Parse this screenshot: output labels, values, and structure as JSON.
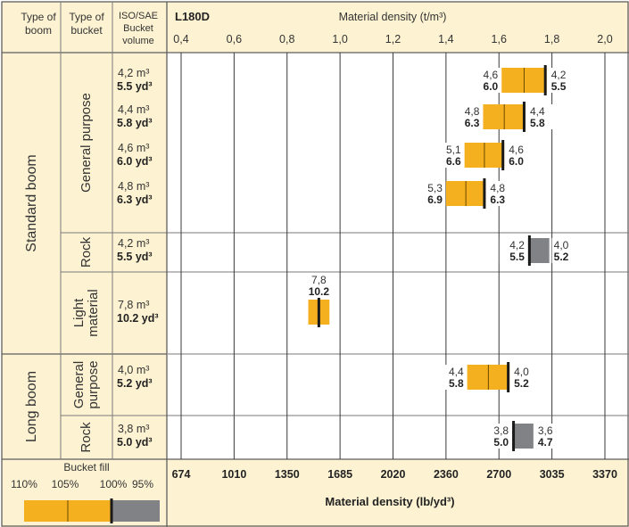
{
  "header": {
    "col_type_of_boom": [
      "Type of",
      "boom"
    ],
    "col_type_of_bucket": [
      "Type of",
      "bucket"
    ],
    "col_volume": [
      "ISO/SAE",
      "Bucket",
      "volume"
    ],
    "model": "L180D",
    "top_axis_title": "Material density (t/m³)"
  },
  "groups": [
    {
      "label": "Standard boom",
      "rows": [
        0,
        9
      ]
    },
    {
      "label": "Long boom",
      "rows": [
        10,
        11
      ]
    }
  ],
  "bucket_types": [
    {
      "label": [
        "General purpose"
      ],
      "rows": [
        0,
        3
      ]
    },
    {
      "label": [
        "Rock"
      ],
      "rows": [
        4,
        4
      ]
    },
    {
      "label": [
        "Light",
        "material"
      ],
      "rows": [
        5,
        5
      ]
    },
    {
      "label": [
        "General",
        "purpose"
      ],
      "rows": [
        6,
        6
      ]
    },
    {
      "label": [
        "Rock"
      ],
      "rows": [
        7,
        7
      ]
    }
  ],
  "chart_data": {
    "type": "bar",
    "title": "L180D",
    "x_axis_top": {
      "label": "Material density (t/m³)",
      "ticks": [
        "0,4",
        "0,6",
        "0,8",
        "1,0",
        "1,2",
        "1,4",
        "1,6",
        "1,8",
        "2,0"
      ],
      "range": [
        0.4,
        2.0
      ]
    },
    "x_axis_bottom": {
      "label": "Material density (lb/yd³)",
      "ticks": [
        "674",
        "1010",
        "1350",
        "1685",
        "2020",
        "2360",
        "2700",
        "3035",
        "3370"
      ]
    },
    "rows": [
      {
        "bucket_type": "General purpose",
        "boom": "Standard boom",
        "volume_m3": "4,2 m³",
        "volume_yd3": "5.5 yd³",
        "color": "orange",
        "left_m3": "4,6",
        "left_yd3": "6.0",
        "right_m3": "4,2",
        "right_yd3": "5.5",
        "start": 1.61,
        "end": 1.78,
        "marker": 1.775
      },
      {
        "bucket_type": "General purpose",
        "boom": "Standard boom",
        "volume_m3": "4,4 m³",
        "volume_yd3": "5.8 yd³",
        "color": "orange",
        "left_m3": "4,8",
        "left_yd3": "6.3",
        "right_m3": "4,4",
        "right_yd3": "5.8",
        "start": 1.54,
        "end": 1.7,
        "marker": 1.695
      },
      {
        "bucket_type": "General purpose",
        "boom": "Standard boom",
        "volume_m3": "4,6 m³",
        "volume_yd3": "6.0 yd³",
        "color": "orange",
        "left_m3": "5,1",
        "left_yd3": "6.6",
        "right_m3": "4,6",
        "right_yd3": "6.0",
        "start": 1.47,
        "end": 1.62,
        "marker": 1.615
      },
      {
        "bucket_type": "General purpose",
        "boom": "Standard boom",
        "volume_m3": "4,8 m³",
        "volume_yd3": "6.3 yd³",
        "color": "orange",
        "left_m3": "5,3",
        "left_yd3": "6.9",
        "right_m3": "4,8",
        "right_yd3": "6.3",
        "start": 1.4,
        "end": 1.55,
        "marker": 1.545
      },
      {
        "bucket_type": "Rock",
        "boom": "Standard boom",
        "volume_m3": "4,2 m³",
        "volume_yd3": "5.5 yd³",
        "color": "gray",
        "left_m3": "4,2",
        "left_yd3": "5.5",
        "right_m3": "4,0",
        "right_yd3": "5.2",
        "start": 1.71,
        "end": 1.79,
        "marker": 1.715
      },
      {
        "bucket_type": "Light material",
        "boom": "Standard boom",
        "volume_m3": "7,8 m³",
        "volume_yd3": "10.2 yd³",
        "color": "orange",
        "label_above": true,
        "left_m3": "7,8",
        "left_yd3": "10.2",
        "right_m3": "",
        "right_yd3": "",
        "start": 0.88,
        "end": 0.96,
        "marker": 0.92
      },
      {
        "bucket_type": "General purpose",
        "boom": "Long boom",
        "volume_m3": "4,0 m³",
        "volume_yd3": "5.2 yd³",
        "color": "orange",
        "left_m3": "4,4",
        "left_yd3": "5.8",
        "right_m3": "4,0",
        "right_yd3": "5.2",
        "start": 1.48,
        "end": 1.64,
        "marker": 1.635
      },
      {
        "bucket_type": "Rock",
        "boom": "Long boom",
        "volume_m3": "3,8 m³",
        "volume_yd3": "5.0 yd³",
        "color": "gray",
        "left_m3": "3,8",
        "left_yd3": "5.0",
        "right_m3": "3,6",
        "right_yd3": "4.7",
        "start": 1.65,
        "end": 1.73,
        "marker": 1.655
      }
    ]
  },
  "legend": {
    "title": "Bucket fill",
    "labels": [
      "110%",
      "105%",
      "100%",
      "95%"
    ]
  },
  "colors": {
    "orange": "#f5b01f",
    "gray": "#808285",
    "cream": "#fdf3d2",
    "marker": "#1a1a1a"
  }
}
